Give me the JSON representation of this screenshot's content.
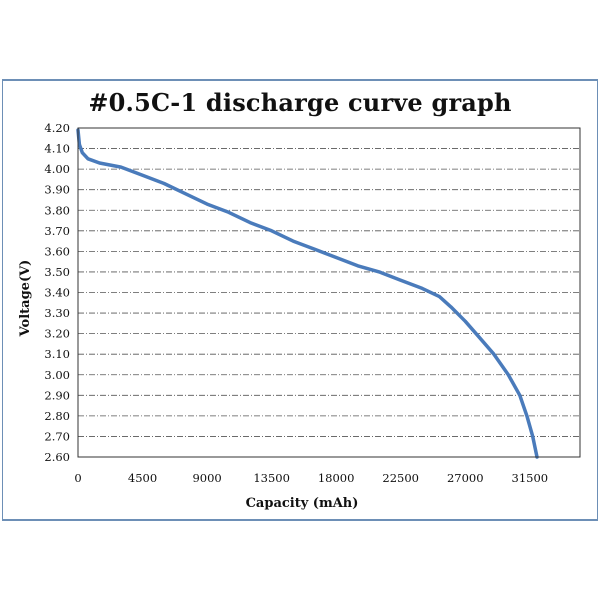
{
  "chart_data": {
    "type": "line",
    "title": "#0.5C-1 discharge curve graph",
    "xlabel": "Capacity (mAh)",
    "ylabel": "Voltage(V)",
    "xlim": [
      0,
      35000
    ],
    "ylim": [
      2.6,
      4.2
    ],
    "xticks": [
      "0",
      "4500",
      "9000",
      "13500",
      "18000",
      "22500",
      "27000",
      "31500"
    ],
    "yticks": [
      "2.60",
      "2.70",
      "2.80",
      "2.90",
      "3.00",
      "3.10",
      "3.20",
      "3.30",
      "3.40",
      "3.50",
      "3.60",
      "3.70",
      "3.80",
      "3.90",
      "4.00",
      "4.10",
      "4.20"
    ],
    "grid": "horizontal dash-dot",
    "colors": {
      "line": "#4a7bbb",
      "grid": "#555555",
      "frame": "#6d8fb6"
    },
    "series": [
      {
        "x": [
          0,
          100,
          300,
          700,
          1500,
          3000,
          4500,
          6000,
          7500,
          9000,
          10500,
          12000,
          13500,
          15000,
          16500,
          18000,
          19500,
          21000,
          22500,
          24000,
          25200,
          26000,
          27000,
          28000,
          29000,
          30000,
          30800,
          31300,
          31700,
          32000
        ],
        "y": [
          4.19,
          4.12,
          4.08,
          4.05,
          4.03,
          4.01,
          3.97,
          3.93,
          3.88,
          3.83,
          3.79,
          3.74,
          3.7,
          3.65,
          3.61,
          3.57,
          3.53,
          3.5,
          3.46,
          3.42,
          3.38,
          3.33,
          3.26,
          3.18,
          3.1,
          3.0,
          2.9,
          2.8,
          2.7,
          2.6
        ]
      }
    ]
  }
}
